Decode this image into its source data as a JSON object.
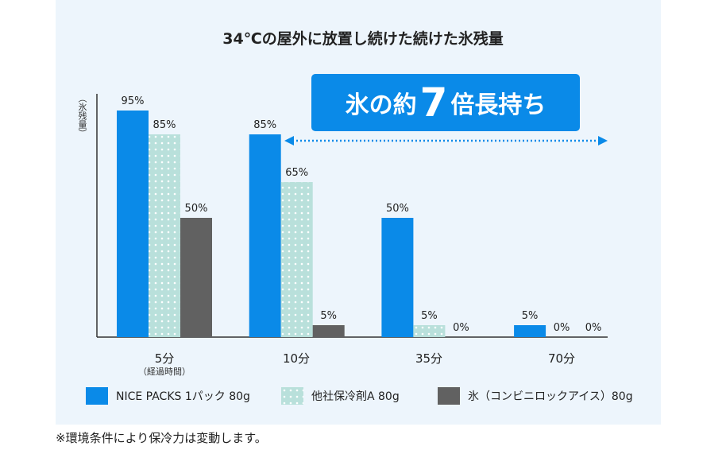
{
  "chart_data": {
    "type": "bar",
    "title": "34℃の屋外に放置し続けた続けた氷残量",
    "ylabel": "（氷残量）",
    "xlabel": "（経過時間）",
    "categories": [
      "5分",
      "10分",
      "35分",
      "70分"
    ],
    "series": [
      {
        "name": "NICE PACKS 1パック 80g",
        "values": [
          95,
          85,
          50,
          5
        ],
        "color": "#0a8ae8",
        "pattern": "solid"
      },
      {
        "name": "他社保冷剤A 80g",
        "values": [
          85,
          65,
          5,
          0
        ],
        "color": "#b9e0db",
        "pattern": "dots"
      },
      {
        "name": "氷（コンビニロックアイス）80g",
        "values": [
          50,
          5,
          0,
          0
        ],
        "color": "#616161",
        "pattern": "solid"
      }
    ],
    "value_suffix": "%",
    "ylim": [
      0,
      100
    ],
    "grid": false,
    "legend_position": "bottom",
    "annotation": {
      "pre": "氷の約",
      "big": "7",
      "post": "倍長持ち",
      "color": "#0a8ae8"
    }
  },
  "footnote": "※環境条件により保冷力は変動します。"
}
